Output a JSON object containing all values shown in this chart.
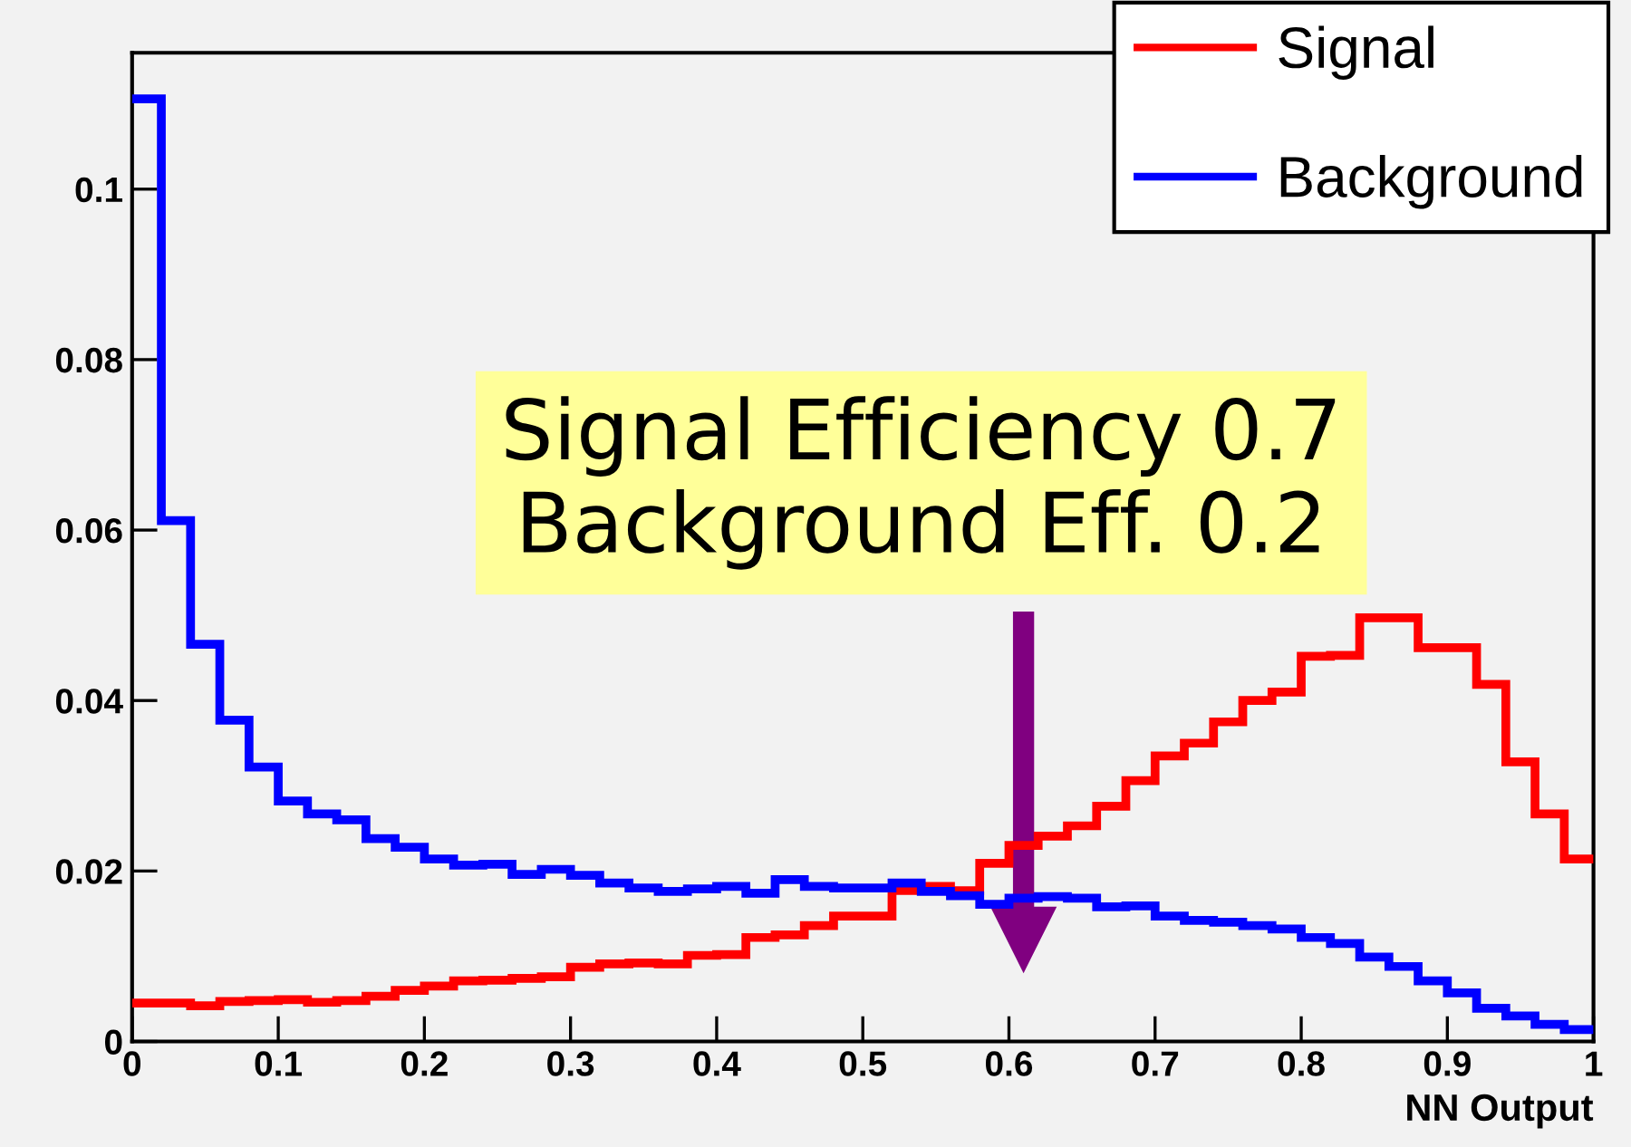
{
  "chart_data": {
    "type": "histogram",
    "xlabel": "NN Output",
    "bins": [
      0,
      0.02,
      0.04,
      0.06,
      0.08,
      0.1,
      0.12,
      0.14,
      0.16,
      0.18,
      0.2,
      0.22,
      0.24,
      0.26,
      0.28,
      0.3,
      0.32,
      0.34,
      0.36,
      0.38,
      0.4,
      0.42,
      0.44,
      0.46,
      0.48,
      0.5,
      0.52,
      0.54,
      0.56,
      0.58,
      0.6,
      0.62,
      0.64,
      0.66,
      0.68,
      0.7,
      0.72,
      0.74,
      0.76,
      0.78,
      0.8,
      0.82,
      0.84,
      0.86,
      0.88,
      0.9,
      0.92,
      0.94,
      0.96,
      0.98,
      1
    ],
    "series": [
      {
        "name": "Signal",
        "color": "#ff0000",
        "values": [
          0.0045,
          0.0045,
          0.0042,
          0.0047,
          0.0048,
          0.0049,
          0.0046,
          0.0048,
          0.0053,
          0.006,
          0.0065,
          0.0071,
          0.0072,
          0.0074,
          0.0076,
          0.0087,
          0.0091,
          0.0092,
          0.0091,
          0.0101,
          0.0102,
          0.0122,
          0.0125,
          0.0136,
          0.0147,
          0.0147,
          0.0177,
          0.0182,
          0.0177,
          0.0209,
          0.023,
          0.0241,
          0.0253,
          0.0276,
          0.0306,
          0.0335,
          0.035,
          0.0375,
          0.04,
          0.041,
          0.0452,
          0.0453,
          0.0497,
          0.0497,
          0.0462,
          0.0462,
          0.0419,
          0.0328,
          0.0267,
          0.0214
        ]
      },
      {
        "name": "Background",
        "color": "#0000ff",
        "values": [
          0.1106,
          0.0611,
          0.0466,
          0.0377,
          0.0322,
          0.0282,
          0.0267,
          0.026,
          0.0238,
          0.0228,
          0.0214,
          0.0207,
          0.0208,
          0.0196,
          0.0202,
          0.0195,
          0.0186,
          0.018,
          0.0176,
          0.0179,
          0.0182,
          0.0174,
          0.019,
          0.0182,
          0.018,
          0.018,
          0.0186,
          0.0176,
          0.0171,
          0.0161,
          0.0168,
          0.017,
          0.0168,
          0.0158,
          0.0159,
          0.0147,
          0.0142,
          0.014,
          0.0136,
          0.0132,
          0.0122,
          0.0115,
          0.0099,
          0.0088,
          0.0071,
          0.0057,
          0.0039,
          0.003,
          0.002,
          0.0014
        ]
      }
    ],
    "xlim": [
      0,
      1
    ],
    "ylim": [
      0,
      0.116
    ],
    "xticks": [
      {
        "value": 0,
        "label": "0"
      },
      0.1,
      0.2,
      0.3,
      0.4,
      0.5,
      0.6,
      0.7,
      0.8,
      0.9,
      {
        "value": 1,
        "label": "1"
      }
    ],
    "yticks": [
      {
        "value": 0,
        "label": "0"
      },
      0.02,
      0.04,
      0.06,
      0.08,
      0.1
    ],
    "annotations": [
      "Signal Efficiency 0.7\nBackground Eff. 0.2"
    ],
    "legend": "top right",
    "grid": false
  }
}
